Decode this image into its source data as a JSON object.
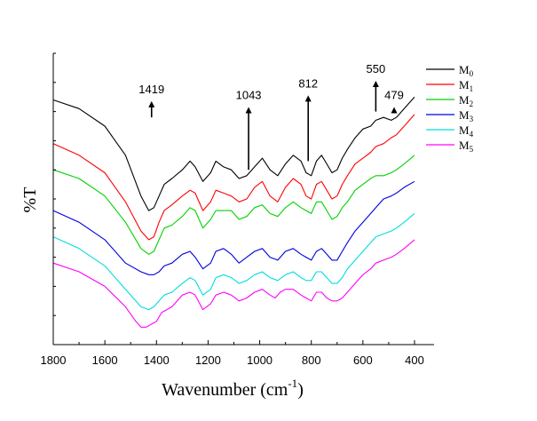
{
  "chart_data": {
    "type": "line",
    "title": "",
    "xlabel": "Wavenumber (cm",
    "xlabel_sup": "-1",
    "xlabel_close": ")",
    "ylabel": "%T",
    "xlim": [
      1800,
      400
    ],
    "x_reversed": true,
    "ylim": [
      0,
      100
    ],
    "y_ticks_labeled": false,
    "x_ticks": [
      1800,
      1600,
      1400,
      1200,
      1000,
      800,
      600,
      400
    ],
    "legend_position": "top-right",
    "annotations": [
      {
        "label": "1419",
        "x": 1419,
        "y": 78,
        "arrow": "up",
        "label_y": 86
      },
      {
        "label": "1043",
        "x": 1043,
        "y": 60,
        "arrow": "up",
        "label_y": 84
      },
      {
        "label": "812",
        "x": 812,
        "y": 63,
        "arrow": "up",
        "label_y": 88
      },
      {
        "label": "550",
        "x": 550,
        "y": 80,
        "arrow": "up",
        "label_y": 93
      },
      {
        "label": "479",
        "x": 479,
        "y": 80,
        "arrow": "up",
        "label_y": 84
      }
    ],
    "series": [
      {
        "name": "M",
        "sub": "0",
        "color": "#000000",
        "points": [
          [
            1800,
            84
          ],
          [
            1700,
            81
          ],
          [
            1600,
            75
          ],
          [
            1520,
            65
          ],
          [
            1460,
            51
          ],
          [
            1430,
            46
          ],
          [
            1410,
            47
          ],
          [
            1390,
            51
          ],
          [
            1370,
            55
          ],
          [
            1340,
            57
          ],
          [
            1300,
            60
          ],
          [
            1270,
            63
          ],
          [
            1250,
            61
          ],
          [
            1220,
            56
          ],
          [
            1190,
            59
          ],
          [
            1170,
            63
          ],
          [
            1140,
            61
          ],
          [
            1110,
            60
          ],
          [
            1080,
            57
          ],
          [
            1050,
            58
          ],
          [
            1020,
            61
          ],
          [
            990,
            64
          ],
          [
            960,
            60
          ],
          [
            930,
            58
          ],
          [
            900,
            62
          ],
          [
            870,
            65
          ],
          [
            840,
            63
          ],
          [
            820,
            59
          ],
          [
            800,
            58
          ],
          [
            780,
            63
          ],
          [
            760,
            65
          ],
          [
            740,
            62
          ],
          [
            720,
            59
          ],
          [
            700,
            60
          ],
          [
            680,
            64
          ],
          [
            660,
            67
          ],
          [
            630,
            71
          ],
          [
            600,
            74
          ],
          [
            570,
            75
          ],
          [
            550,
            77
          ],
          [
            520,
            78
          ],
          [
            490,
            77
          ],
          [
            470,
            78
          ],
          [
            440,
            81
          ],
          [
            400,
            85
          ]
        ]
      },
      {
        "name": "M",
        "sub": "1",
        "color": "#ff0000",
        "points": [
          [
            1800,
            69
          ],
          [
            1700,
            65
          ],
          [
            1600,
            59
          ],
          [
            1520,
            49
          ],
          [
            1460,
            39
          ],
          [
            1430,
            36
          ],
          [
            1410,
            37
          ],
          [
            1390,
            42
          ],
          [
            1370,
            46
          ],
          [
            1340,
            48
          ],
          [
            1300,
            51
          ],
          [
            1270,
            53
          ],
          [
            1250,
            52
          ],
          [
            1220,
            46
          ],
          [
            1190,
            49
          ],
          [
            1170,
            53
          ],
          [
            1140,
            52
          ],
          [
            1110,
            51
          ],
          [
            1080,
            49
          ],
          [
            1050,
            50
          ],
          [
            1020,
            54
          ],
          [
            990,
            56
          ],
          [
            960,
            51
          ],
          [
            930,
            49
          ],
          [
            900,
            54
          ],
          [
            870,
            57
          ],
          [
            840,
            55
          ],
          [
            820,
            51
          ],
          [
            800,
            50
          ],
          [
            780,
            55
          ],
          [
            760,
            56
          ],
          [
            740,
            53
          ],
          [
            720,
            50
          ],
          [
            700,
            51
          ],
          [
            680,
            55
          ],
          [
            660,
            58
          ],
          [
            630,
            62
          ],
          [
            600,
            64
          ],
          [
            570,
            66
          ],
          [
            550,
            68
          ],
          [
            520,
            69
          ],
          [
            490,
            71
          ],
          [
            470,
            72
          ],
          [
            440,
            75
          ],
          [
            400,
            79
          ]
        ]
      },
      {
        "name": "M",
        "sub": "2",
        "color": "#00d200",
        "points": [
          [
            1800,
            60
          ],
          [
            1700,
            57
          ],
          [
            1600,
            51
          ],
          [
            1520,
            42
          ],
          [
            1460,
            33
          ],
          [
            1430,
            31
          ],
          [
            1410,
            32
          ],
          [
            1390,
            36
          ],
          [
            1370,
            40
          ],
          [
            1340,
            41
          ],
          [
            1300,
            44
          ],
          [
            1270,
            47
          ],
          [
            1250,
            46
          ],
          [
            1220,
            40
          ],
          [
            1190,
            43
          ],
          [
            1170,
            46
          ],
          [
            1140,
            46
          ],
          [
            1110,
            46
          ],
          [
            1080,
            43
          ],
          [
            1050,
            44
          ],
          [
            1020,
            47
          ],
          [
            990,
            48
          ],
          [
            960,
            45
          ],
          [
            930,
            44
          ],
          [
            900,
            47
          ],
          [
            870,
            49
          ],
          [
            840,
            47
          ],
          [
            820,
            46
          ],
          [
            800,
            45
          ],
          [
            780,
            49
          ],
          [
            760,
            49
          ],
          [
            740,
            46
          ],
          [
            720,
            43
          ],
          [
            700,
            44
          ],
          [
            680,
            47
          ],
          [
            660,
            49
          ],
          [
            630,
            53
          ],
          [
            600,
            55
          ],
          [
            570,
            57
          ],
          [
            550,
            58
          ],
          [
            520,
            58
          ],
          [
            490,
            59
          ],
          [
            470,
            60
          ],
          [
            440,
            62
          ],
          [
            400,
            65
          ]
        ]
      },
      {
        "name": "M",
        "sub": "3",
        "color": "#0000dd",
        "points": [
          [
            1800,
            46
          ],
          [
            1700,
            42
          ],
          [
            1600,
            36
          ],
          [
            1520,
            28
          ],
          [
            1460,
            25
          ],
          [
            1430,
            24
          ],
          [
            1410,
            24
          ],
          [
            1390,
            25
          ],
          [
            1370,
            27
          ],
          [
            1340,
            28
          ],
          [
            1300,
            31
          ],
          [
            1270,
            32
          ],
          [
            1250,
            30
          ],
          [
            1220,
            26
          ],
          [
            1190,
            28
          ],
          [
            1170,
            32
          ],
          [
            1140,
            33
          ],
          [
            1110,
            31
          ],
          [
            1080,
            28
          ],
          [
            1050,
            30
          ],
          [
            1020,
            32
          ],
          [
            990,
            33
          ],
          [
            960,
            30
          ],
          [
            930,
            29
          ],
          [
            900,
            32
          ],
          [
            870,
            33
          ],
          [
            840,
            31
          ],
          [
            820,
            30
          ],
          [
            800,
            29
          ],
          [
            780,
            32
          ],
          [
            760,
            33
          ],
          [
            740,
            31
          ],
          [
            720,
            29
          ],
          [
            700,
            29
          ],
          [
            680,
            32
          ],
          [
            660,
            35
          ],
          [
            630,
            39
          ],
          [
            600,
            42
          ],
          [
            570,
            45
          ],
          [
            550,
            47
          ],
          [
            520,
            50
          ],
          [
            490,
            51
          ],
          [
            470,
            52
          ],
          [
            440,
            54
          ],
          [
            400,
            56
          ]
        ]
      },
      {
        "name": "M",
        "sub": "4",
        "color": "#00dddd",
        "points": [
          [
            1800,
            37
          ],
          [
            1700,
            33
          ],
          [
            1600,
            27
          ],
          [
            1520,
            19
          ],
          [
            1460,
            13
          ],
          [
            1430,
            12
          ],
          [
            1410,
            13
          ],
          [
            1390,
            15
          ],
          [
            1370,
            17
          ],
          [
            1340,
            18
          ],
          [
            1300,
            21
          ],
          [
            1270,
            23
          ],
          [
            1250,
            22
          ],
          [
            1220,
            17
          ],
          [
            1190,
            19
          ],
          [
            1170,
            23
          ],
          [
            1140,
            24
          ],
          [
            1110,
            23
          ],
          [
            1080,
            21
          ],
          [
            1050,
            22
          ],
          [
            1020,
            24
          ],
          [
            990,
            25
          ],
          [
            960,
            23
          ],
          [
            930,
            22
          ],
          [
            900,
            24
          ],
          [
            870,
            25
          ],
          [
            840,
            23
          ],
          [
            820,
            22
          ],
          [
            800,
            22
          ],
          [
            780,
            25
          ],
          [
            760,
            25
          ],
          [
            740,
            23
          ],
          [
            720,
            21
          ],
          [
            700,
            21
          ],
          [
            680,
            23
          ],
          [
            660,
            26
          ],
          [
            630,
            29
          ],
          [
            600,
            32
          ],
          [
            570,
            35
          ],
          [
            550,
            37
          ],
          [
            520,
            38
          ],
          [
            490,
            39
          ],
          [
            470,
            40
          ],
          [
            440,
            42
          ],
          [
            400,
            45
          ]
        ]
      },
      {
        "name": "M",
        "sub": "5",
        "color": "#ff00ff",
        "points": [
          [
            1800,
            28
          ],
          [
            1700,
            25
          ],
          [
            1600,
            20
          ],
          [
            1520,
            13
          ],
          [
            1480,
            8
          ],
          [
            1460,
            6
          ],
          [
            1440,
            6
          ],
          [
            1420,
            7
          ],
          [
            1400,
            8
          ],
          [
            1380,
            11
          ],
          [
            1360,
            12
          ],
          [
            1340,
            13
          ],
          [
            1300,
            17
          ],
          [
            1270,
            18
          ],
          [
            1250,
            17
          ],
          [
            1220,
            12
          ],
          [
            1190,
            14
          ],
          [
            1170,
            17
          ],
          [
            1140,
            18
          ],
          [
            1110,
            17
          ],
          [
            1080,
            15
          ],
          [
            1050,
            16
          ],
          [
            1020,
            18
          ],
          [
            990,
            19
          ],
          [
            960,
            17
          ],
          [
            940,
            16
          ],
          [
            920,
            18
          ],
          [
            900,
            19
          ],
          [
            870,
            19
          ],
          [
            840,
            17
          ],
          [
            820,
            16
          ],
          [
            800,
            15
          ],
          [
            780,
            18
          ],
          [
            760,
            18
          ],
          [
            740,
            16
          ],
          [
            720,
            15
          ],
          [
            700,
            15
          ],
          [
            680,
            16
          ],
          [
            660,
            18
          ],
          [
            630,
            21
          ],
          [
            600,
            24
          ],
          [
            570,
            26
          ],
          [
            550,
            28
          ],
          [
            520,
            29
          ],
          [
            490,
            30
          ],
          [
            470,
            31
          ],
          [
            440,
            33
          ],
          [
            400,
            36
          ]
        ]
      }
    ]
  }
}
